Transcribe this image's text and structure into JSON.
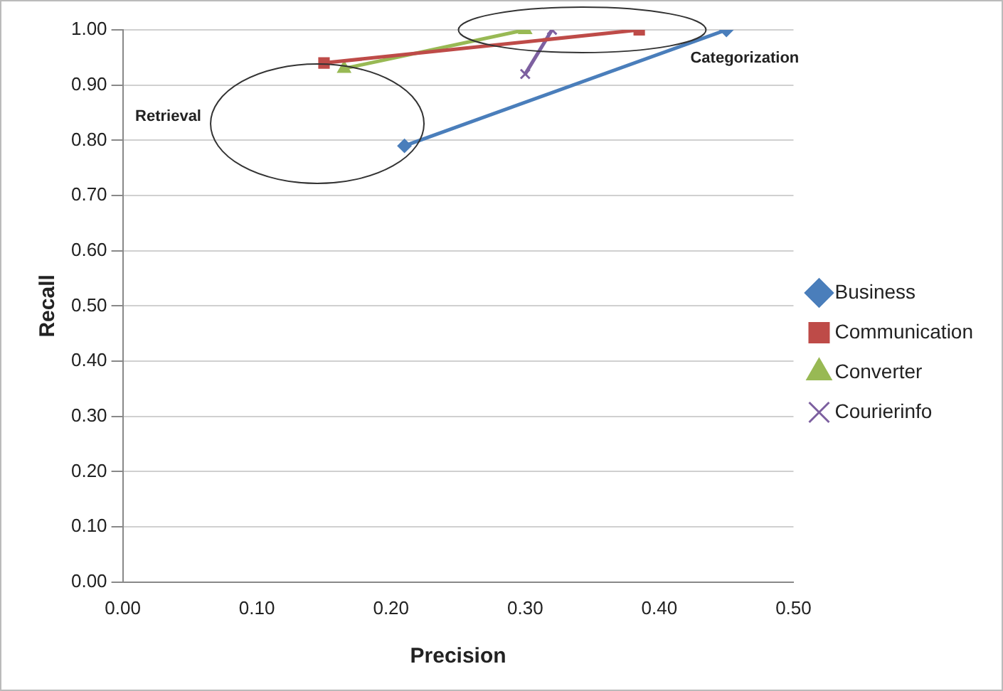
{
  "chart_data": {
    "type": "line",
    "xlabel": "Precision",
    "ylabel": "Recall",
    "xlim": [
      0,
      0.5
    ],
    "xticks": [
      {
        "value": 0,
        "label": "0.00"
      },
      {
        "value": 0.1,
        "label": "0.10"
      },
      {
        "value": 0.2,
        "label": "0.20"
      },
      {
        "value": 0.3,
        "label": "0.30"
      },
      {
        "value": 0.4,
        "label": "0.40"
      },
      {
        "value": 0.5,
        "label": "0.50"
      }
    ],
    "ylim": [
      0,
      1
    ],
    "yticks": [
      {
        "value": 0,
        "label": "0.00"
      },
      {
        "value": 0.1,
        "label": "0.10"
      },
      {
        "value": 0.2,
        "label": "0.20"
      },
      {
        "value": 0.3,
        "label": "0.30"
      },
      {
        "value": 0.4,
        "label": "0.40"
      },
      {
        "value": 0.5,
        "label": "0.50"
      },
      {
        "value": 0.6,
        "label": "0.60"
      },
      {
        "value": 0.7,
        "label": "0.70"
      },
      {
        "value": 0.8,
        "label": "0.80"
      },
      {
        "value": 0.9,
        "label": "0.90"
      },
      {
        "value": 1,
        "label": "1.00"
      }
    ],
    "grid": "y",
    "legend": "right",
    "series": [
      {
        "name": "Business",
        "color": "#4a7ebb",
        "marker": "diamond",
        "x": [
          0.21,
          0.45
        ],
        "values": [
          0.79,
          1.0
        ]
      },
      {
        "name": "Communication",
        "color": "#be4b48",
        "marker": "square",
        "x": [
          0.15,
          0.385
        ],
        "values": [
          0.94,
          1.0
        ]
      },
      {
        "name": "Converter",
        "color": "#98b954",
        "marker": "triangle",
        "x": [
          0.165,
          0.3
        ],
        "values": [
          0.93,
          1.0
        ]
      },
      {
        "name": "Courierinfo",
        "color": "#7d60a0",
        "marker": "cross",
        "x": [
          0.3,
          0.32
        ],
        "values": [
          0.92,
          1.0
        ]
      }
    ],
    "annotations": [
      "Retrieval",
      "Categorization"
    ]
  }
}
